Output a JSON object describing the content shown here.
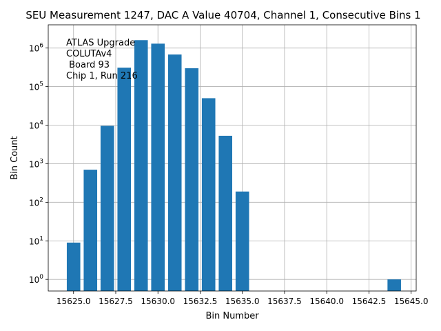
{
  "chart_data": {
    "type": "bar",
    "title": "SEU Measurement 1247, DAC A Value 40704, Channel 1, Consecutive Bins 1",
    "xlabel": "Bin Number",
    "ylabel": "Bin Count",
    "yscale": "log",
    "grid": true,
    "xlim": [
      15623.5,
      15645.3
    ],
    "ylim": [
      0.5,
      4000000
    ],
    "x_ticks": [
      {
        "value": 15625.0,
        "label": "15625.0"
      },
      {
        "value": 15627.5,
        "label": "15627.5"
      },
      {
        "value": 15630.0,
        "label": "15630.0"
      },
      {
        "value": 15632.5,
        "label": "15632.5"
      },
      {
        "value": 15635.0,
        "label": "15635.0"
      },
      {
        "value": 15637.5,
        "label": "15637.5"
      },
      {
        "value": 15640.0,
        "label": "15640.0"
      },
      {
        "value": 15642.5,
        "label": "15642.5"
      },
      {
        "value": 15645.0,
        "label": "15645.0"
      }
    ],
    "y_ticks": [
      {
        "value": 1,
        "base": "10",
        "exp": "0"
      },
      {
        "value": 10,
        "base": "10",
        "exp": "1"
      },
      {
        "value": 100,
        "base": "10",
        "exp": "2"
      },
      {
        "value": 1000,
        "base": "10",
        "exp": "3"
      },
      {
        "value": 10000,
        "base": "10",
        "exp": "4"
      },
      {
        "value": 100000,
        "base": "10",
        "exp": "5"
      },
      {
        "value": 1000000,
        "base": "10",
        "exp": "6"
      }
    ],
    "bar_width": 0.8,
    "bars": [
      {
        "x": 15625,
        "value": 9
      },
      {
        "x": 15626,
        "value": 700
      },
      {
        "x": 15627,
        "value": 9600
      },
      {
        "x": 15628,
        "value": 310000
      },
      {
        "x": 15629,
        "value": 1600000
      },
      {
        "x": 15630,
        "value": 1300000
      },
      {
        "x": 15631,
        "value": 680000
      },
      {
        "x": 15632,
        "value": 300000
      },
      {
        "x": 15633,
        "value": 50000
      },
      {
        "x": 15634,
        "value": 5300
      },
      {
        "x": 15635,
        "value": 190
      },
      {
        "x": 15644,
        "value": 1
      }
    ],
    "annotation_lines": [
      "ATLAS Upgrade",
      "COLUTAv4",
      " Board 93",
      "Chip 1, Run 216"
    ],
    "colors": {
      "bar": "#1f77b4",
      "grid": "#b0b0b0"
    }
  }
}
